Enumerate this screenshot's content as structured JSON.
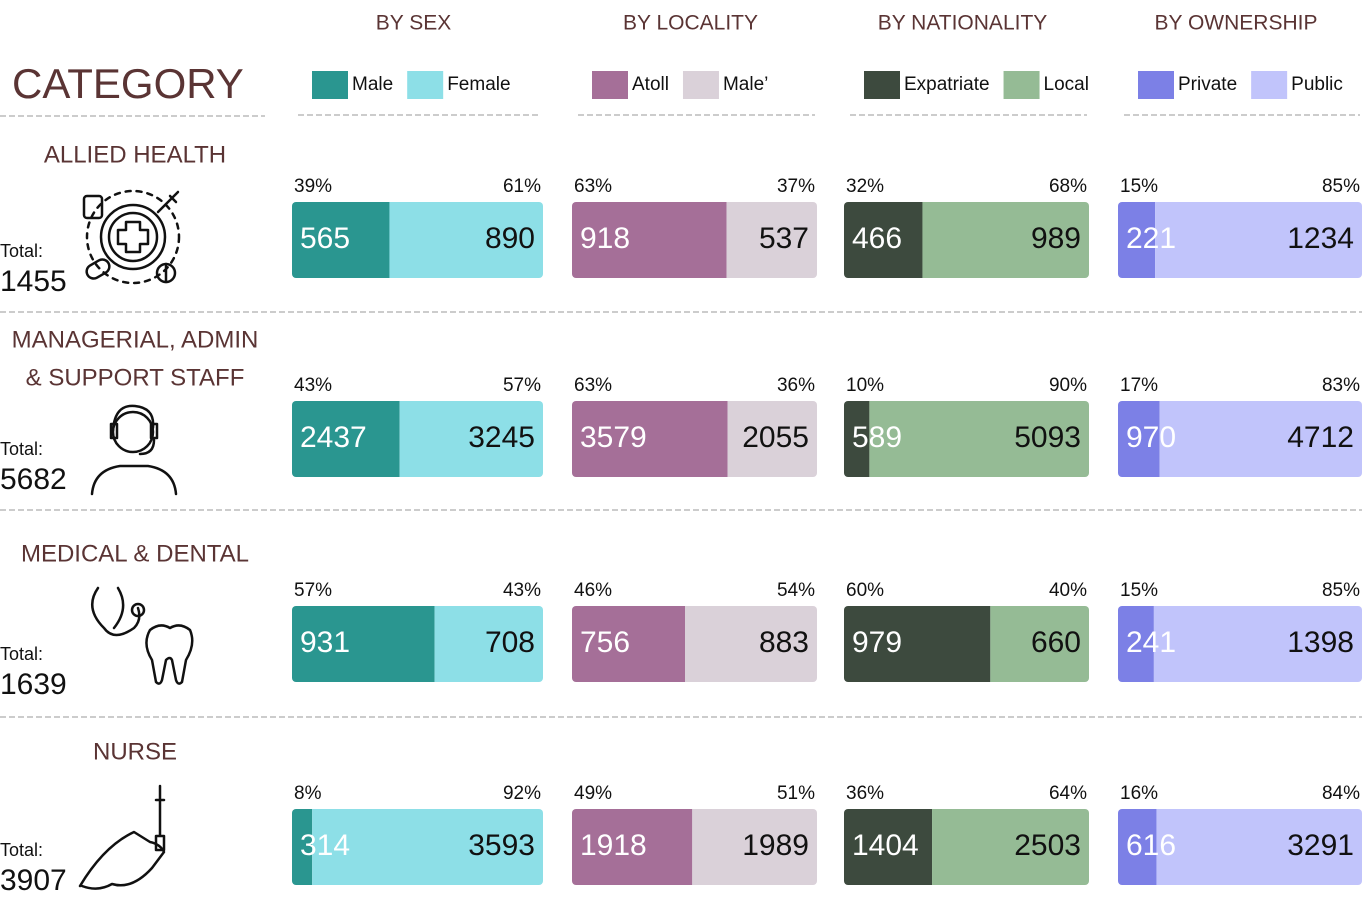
{
  "header": {
    "category": "CATEGORY",
    "groups": [
      {
        "title": "BY SEX",
        "legend": [
          {
            "name": "Male",
            "color": "#2a9690"
          },
          {
            "name": "Female",
            "color": "#8ddfe7"
          }
        ]
      },
      {
        "title": "BY LOCALITY",
        "legend": [
          {
            "name": "Atoll",
            "color": "#a56f98"
          },
          {
            "name": "Male’",
            "color": "#dad1d9"
          }
        ]
      },
      {
        "title": "BY NATIONALITY",
        "legend": [
          {
            "name": "Expatriate",
            "color": "#3d4a3e"
          },
          {
            "name": "Local",
            "color": "#95bb95"
          }
        ]
      },
      {
        "title": "BY OWNERSHIP",
        "legend": [
          {
            "name": "Private",
            "color": "#7c80e6"
          },
          {
            "name": "Public",
            "color": "#c1c4fb"
          }
        ]
      }
    ]
  },
  "rows": [
    {
      "name": [
        "ALLIED HEALTH"
      ],
      "total_label": "Total:",
      "total": 1455,
      "cells": [
        {
          "values": [
            565,
            890
          ],
          "percent_labels": [
            "39%",
            "61%"
          ]
        },
        {
          "values": [
            918,
            537
          ],
          "percent_labels": [
            "63%",
            "37%"
          ]
        },
        {
          "values": [
            466,
            989
          ],
          "percent_labels": [
            "32%",
            "68%"
          ]
        },
        {
          "values": [
            221,
            1234
          ],
          "percent_labels": [
            "15%",
            "85%"
          ]
        }
      ]
    },
    {
      "name": [
        "MANAGERIAL, ADMIN",
        "& SUPPORT STAFF"
      ],
      "total_label": "Total:",
      "total": 5682,
      "cells": [
        {
          "values": [
            2437,
            3245
          ],
          "percent_labels": [
            "43%",
            "57%"
          ]
        },
        {
          "values": [
            3579,
            2055
          ],
          "percent_labels": [
            "63%",
            "36%"
          ]
        },
        {
          "values": [
            589,
            5093
          ],
          "percent_labels": [
            "10%",
            "90%"
          ]
        },
        {
          "values": [
            970,
            4712
          ],
          "percent_labels": [
            "17%",
            "83%"
          ]
        }
      ]
    },
    {
      "name": [
        "MEDICAL & DENTAL"
      ],
      "total_label": "Total:",
      "total": 1639,
      "cells": [
        {
          "values": [
            931,
            708
          ],
          "percent_labels": [
            "57%",
            "43%"
          ]
        },
        {
          "values": [
            756,
            883
          ],
          "percent_labels": [
            "46%",
            "54%"
          ]
        },
        {
          "values": [
            979,
            660
          ],
          "percent_labels": [
            "60%",
            "40%"
          ]
        },
        {
          "values": [
            241,
            1398
          ],
          "percent_labels": [
            "15%",
            "85%"
          ]
        }
      ]
    },
    {
      "name": [
        "NURSE"
      ],
      "total_label": "Total:",
      "total": 3907,
      "cells": [
        {
          "values": [
            314,
            3593
          ],
          "percent_labels": [
            "8%",
            "92%"
          ]
        },
        {
          "values": [
            1918,
            1989
          ],
          "percent_labels": [
            "49%",
            "51%"
          ]
        },
        {
          "values": [
            1404,
            2503
          ],
          "percent_labels": [
            "36%",
            "64%"
          ]
        },
        {
          "values": [
            616,
            3291
          ],
          "percent_labels": [
            "16%",
            "84%"
          ]
        }
      ]
    }
  ]
}
